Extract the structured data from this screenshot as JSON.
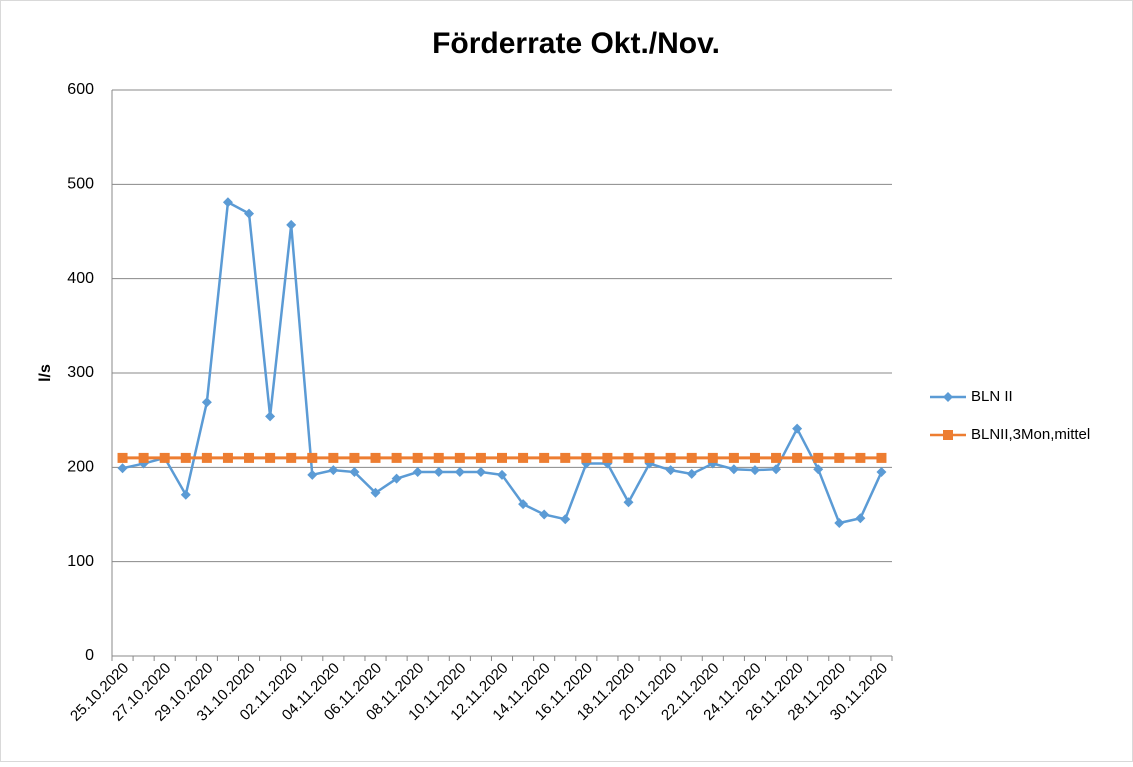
{
  "chart_data": {
    "type": "line",
    "title": "Förderrate Okt./Nov.",
    "y_label": "l/s",
    "categories": [
      "25.10.2020",
      null,
      "27.10.2020",
      null,
      "29.10.2020",
      null,
      "31.10.2020",
      null,
      "02.11.2020",
      null,
      "04.11.2020",
      null,
      "06.11.2020",
      null,
      "08.11.2020",
      null,
      "10.11.2020",
      null,
      "12.11.2020",
      null,
      "14.11.2020",
      null,
      "16.11.2020",
      null,
      "18.11.2020",
      null,
      "20.11.2020",
      null,
      "22.11.2020",
      null,
      "24.11.2020",
      null,
      "26.11.2020",
      null,
      "28.11.2020",
      null,
      "30.11.2020"
    ],
    "series": [
      {
        "name": "BLN II",
        "color": "#5b9bd5",
        "marker": "diamond",
        "values": [
          199,
          204,
          210,
          171,
          269,
          481,
          469,
          254,
          457,
          192,
          197,
          195,
          173,
          188,
          195,
          195,
          195,
          195,
          192,
          161,
          150,
          145,
          204,
          204,
          163,
          204,
          197,
          193,
          204,
          198,
          197,
          198,
          241,
          198,
          141,
          146,
          195
        ]
      },
      {
        "name": "BLNII,3Mon,mittel",
        "color": "#ed7d31",
        "marker": "square",
        "values": [
          210,
          210,
          210,
          210,
          210,
          210,
          210,
          210,
          210,
          210,
          210,
          210,
          210,
          210,
          210,
          210,
          210,
          210,
          210,
          210,
          210,
          210,
          210,
          210,
          210,
          210,
          210,
          210,
          210,
          210,
          210,
          210,
          210,
          210,
          210,
          210,
          210
        ]
      }
    ],
    "ylim": [
      0,
      600
    ],
    "yticks": [
      0,
      100,
      200,
      300,
      400,
      500,
      600
    ],
    "grid": true,
    "legend": "right"
  }
}
